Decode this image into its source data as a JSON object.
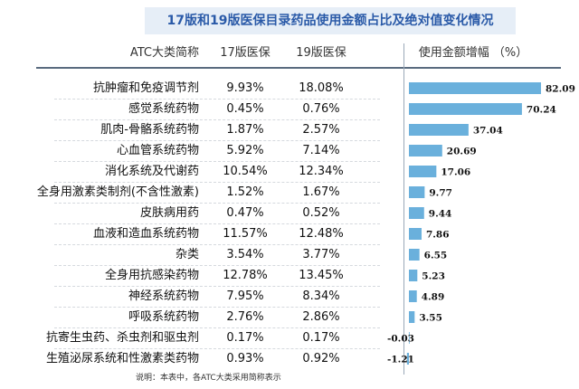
{
  "header": {
    "title": "17版和19版医保目录药品使用金额占比及绝对值变化情况",
    "col_name": "ATC大类简称",
    "col_v17": "17版医保",
    "col_v19": "19版医保",
    "col_increase": "使用金额增幅 （%）"
  },
  "rows": [
    {
      "name": "抗肿瘤和免疫调节剂",
      "v17": "9.93%",
      "v19": "18.08%",
      "increase_label": "82.09"
    },
    {
      "name": "感觉系统药物",
      "v17": "0.45%",
      "v19": "0.76%",
      "increase_label": "70.24"
    },
    {
      "name": "肌肉-骨骼系统药物",
      "v17": "1.87%",
      "v19": "2.57%",
      "increase_label": "37.04"
    },
    {
      "name": "心血管系统药物",
      "v17": "5.92%",
      "v19": "7.14%",
      "increase_label": "20.69"
    },
    {
      "name": "消化系统及代谢药",
      "v17": "10.54%",
      "v19": "12.34%",
      "increase_label": "17.06"
    },
    {
      "name": "全身用激素类制剂(不含性激素)",
      "v17": "1.52%",
      "v19": "1.67%",
      "increase_label": "9.77"
    },
    {
      "name": "皮肤病用药",
      "v17": "0.47%",
      "v19": "0.52%",
      "increase_label": "9.44"
    },
    {
      "name": "血液和造血系统药物",
      "v17": "11.57%",
      "v19": "12.48%",
      "increase_label": "7.86"
    },
    {
      "name": "杂类",
      "v17": "3.54%",
      "v19": "3.77%",
      "increase_label": "6.55"
    },
    {
      "name": "全身用抗感染药物",
      "v17": "12.78%",
      "v19": "13.45%",
      "increase_label": "5.23"
    },
    {
      "name": "神经系统药物",
      "v17": "7.95%",
      "v19": "8.34%",
      "increase_label": "4.89"
    },
    {
      "name": "呼吸系统药物",
      "v17": "2.76%",
      "v19": "2.86%",
      "increase_label": "3.55"
    },
    {
      "name": "抗寄生虫药、杀虫剂和驱虫剂",
      "v17": "0.17%",
      "v19": "0.17%",
      "increase_label": "-0.03"
    },
    {
      "name": "生殖泌尿系统和性激素类药物",
      "v17": "0.93%",
      "v19": "0.92%",
      "increase_label": "-1.21"
    }
  ],
  "note": "说明：本表中，各ATC大类采用简称表示",
  "colors": {
    "bar": "#6ab0dc",
    "title_bg": "#e6eef7",
    "title_text": "#2a5aa8"
  },
  "chart_data": {
    "type": "bar",
    "orientation": "horizontal",
    "title": "17版和19版医保目录药品使用金额占比及绝对值变化情况",
    "xlabel": "使用金额增幅 （%）",
    "categories": [
      "抗肿瘤和免疫调节剂",
      "感觉系统药物",
      "肌肉-骨骼系统药物",
      "心血管系统药物",
      "消化系统及代谢药",
      "全身用激素类制剂(不含性激素)",
      "皮肤病用药",
      "血液和造血系统药物",
      "杂类",
      "全身用抗感染药物",
      "神经系统药物",
      "呼吸系统药物",
      "抗寄生虫药、杀虫剂和驱虫剂",
      "生殖泌尿系统和性激素类药物"
    ],
    "values": [
      82.09,
      70.24,
      37.04,
      20.69,
      17.06,
      9.77,
      9.44,
      7.86,
      6.55,
      5.23,
      4.89,
      3.55,
      -0.03,
      -1.21
    ],
    "xlim": [
      -1.21,
      82.09
    ],
    "grid": false,
    "legend": "none"
  }
}
